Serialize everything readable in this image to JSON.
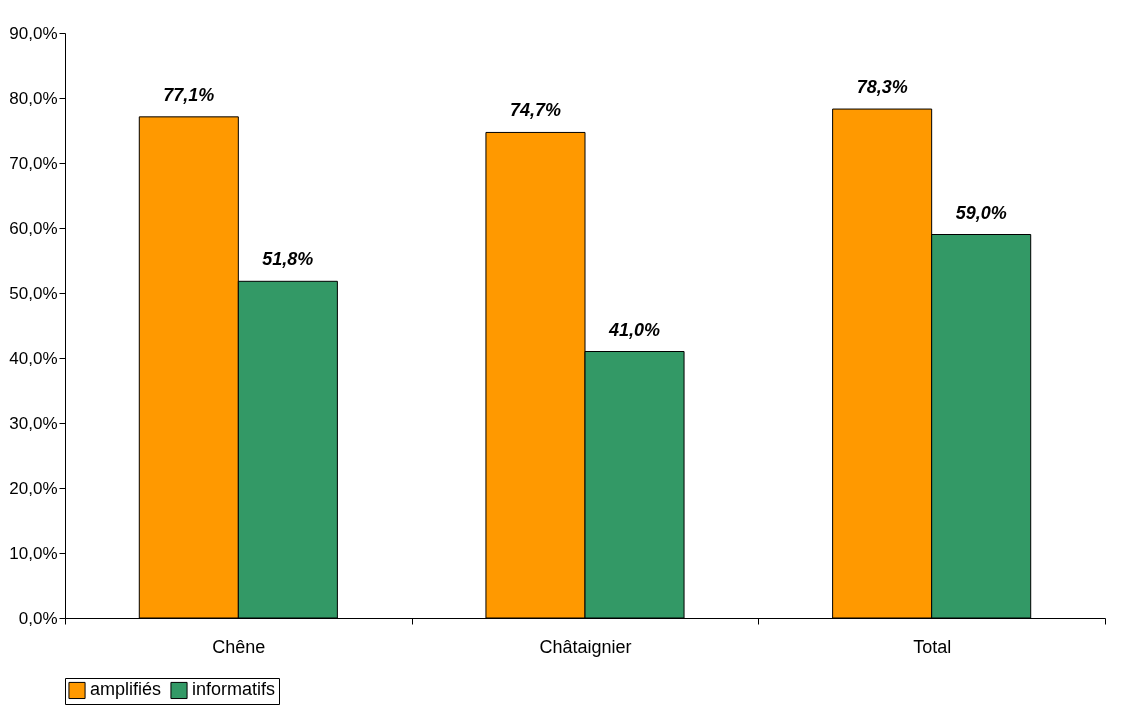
{
  "chart_data": {
    "type": "bar",
    "categories": [
      "Chêne",
      "Châtaignier",
      "Total"
    ],
    "series": [
      {
        "name": "amplifiés",
        "color": "#ff9900",
        "values": [
          77.1,
          74.7,
          78.3
        ],
        "value_labels": [
          "77,1%",
          "74,7%",
          "78,3%"
        ]
      },
      {
        "name": "informatifs",
        "color": "#339966",
        "values": [
          51.8,
          41.0,
          59.0
        ],
        "value_labels": [
          "51,8%",
          "41,0%",
          "59,0%"
        ]
      }
    ],
    "ylim": [
      0,
      90
    ],
    "yticks": [
      {
        "value": 0,
        "label": "0,0%"
      },
      {
        "value": 10,
        "label": "10,0%"
      },
      {
        "value": 20,
        "label": "20,0%"
      },
      {
        "value": 30,
        "label": "30,0%"
      },
      {
        "value": 40,
        "label": "40,0%"
      },
      {
        "value": 50,
        "label": "50,0%"
      },
      {
        "value": 60,
        "label": "60,0%"
      },
      {
        "value": 70,
        "label": "70,0%"
      },
      {
        "value": 80,
        "label": "80,0%"
      },
      {
        "value": 90,
        "label": "90,0%"
      }
    ],
    "grid": false,
    "legend": "bottom"
  }
}
